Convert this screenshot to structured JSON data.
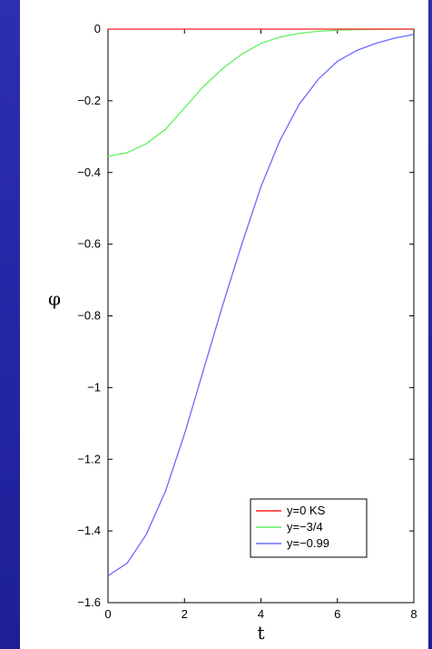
{
  "chart_data": {
    "type": "line",
    "title": "",
    "xlabel": "t",
    "ylabel": "φ",
    "xlim": [
      0,
      8
    ],
    "ylim": [
      -1.6,
      0
    ],
    "xticks": [
      0,
      2,
      4,
      6,
      8
    ],
    "yticks": [
      0,
      -0.2,
      -0.4,
      -0.6,
      -0.8,
      -1,
      -1.2,
      -1.4,
      -1.6
    ],
    "ytick_labels": [
      "0",
      "−0.2",
      "−0.4",
      "−0.6",
      "−0.8",
      "−1",
      "−1.2",
      "−1.4",
      "−1.6"
    ],
    "xtick_labels": [
      "0",
      "2",
      "4",
      "6",
      "8"
    ],
    "grid": false,
    "legend_position": "bottom-right",
    "series": [
      {
        "name": "y=0  KS",
        "color": "#ff2020",
        "x": [
          0,
          1,
          2,
          3,
          4,
          5,
          6,
          7,
          8
        ],
        "y": [
          0,
          0,
          0,
          0,
          0,
          0,
          0,
          0,
          0
        ]
      },
      {
        "name": "y=−3/4",
        "color": "#60f060",
        "x": [
          0,
          0.5,
          1,
          1.5,
          2,
          2.5,
          3,
          3.5,
          4,
          4.5,
          5,
          5.5,
          6,
          6.5,
          7,
          7.5,
          8
        ],
        "y": [
          -0.355,
          -0.345,
          -0.32,
          -0.28,
          -0.22,
          -0.16,
          -0.11,
          -0.07,
          -0.04,
          -0.022,
          -0.012,
          -0.006,
          -0.003,
          -0.0015,
          -0.0008,
          -0.0004,
          -0.0002
        ]
      },
      {
        "name": "y=−0.99",
        "color": "#6a6aff",
        "x": [
          0,
          0.5,
          1,
          1.5,
          2,
          2.5,
          3,
          3.5,
          4,
          4.5,
          5,
          5.5,
          6,
          6.5,
          7,
          7.5,
          8
        ],
        "y": [
          -1.525,
          -1.49,
          -1.41,
          -1.29,
          -1.13,
          -0.95,
          -0.77,
          -0.6,
          -0.44,
          -0.31,
          -0.21,
          -0.14,
          -0.09,
          -0.06,
          -0.04,
          -0.025,
          -0.015
        ]
      }
    ]
  }
}
